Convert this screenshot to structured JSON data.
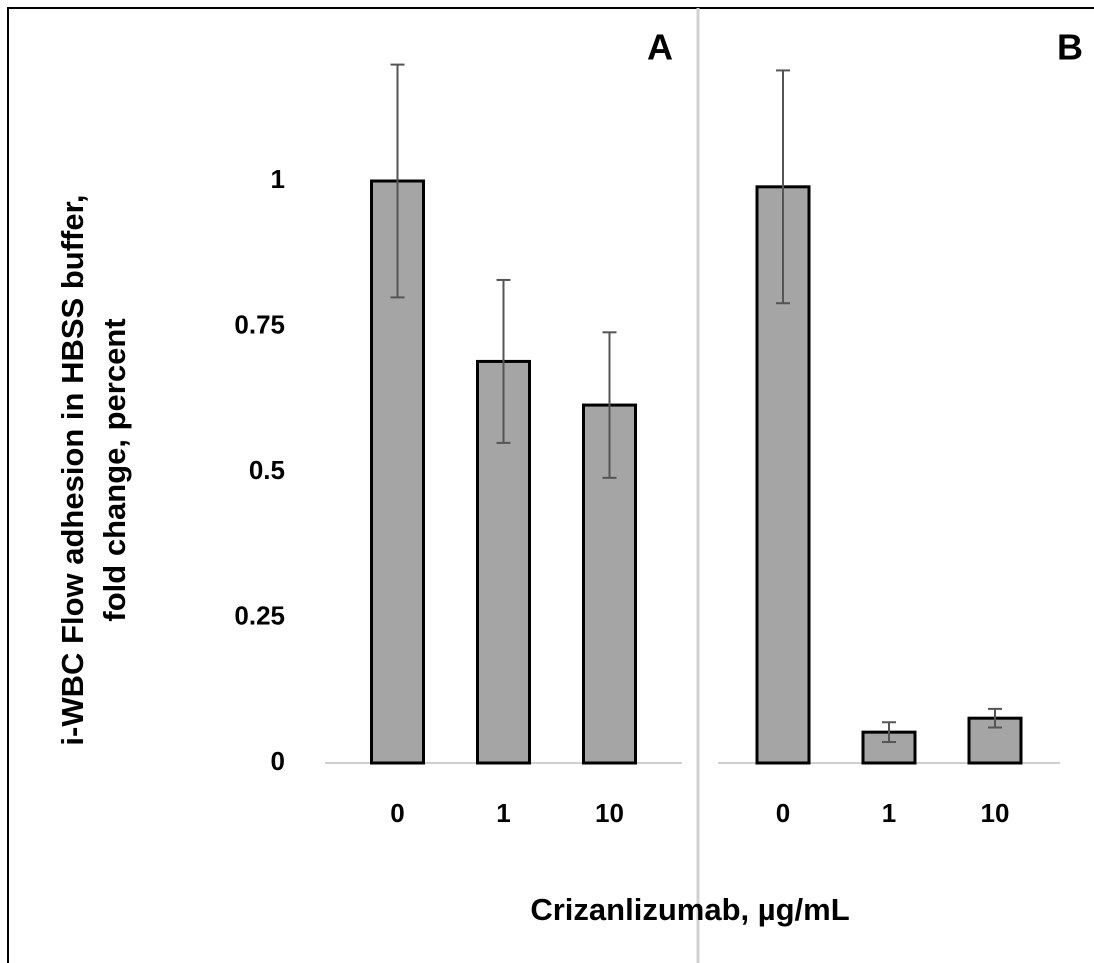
{
  "chart_data": [
    {
      "type": "bar",
      "title": "A",
      "ylabel": [
        "i-WBC Flow adhesion in HBSS buffer,",
        "fold change, percent"
      ],
      "xlabel": "Crizanlizumab, µg/mL",
      "categories": [
        "0",
        "1",
        "10"
      ],
      "values": [
        1.0,
        0.69,
        0.615
      ],
      "errors": [
        0.2,
        0.14,
        0.125
      ],
      "color": "#a5a5a5",
      "ylim": [
        0,
        1.25
      ],
      "yticks": [
        0,
        0.25,
        0.5,
        0.75,
        1
      ]
    },
    {
      "type": "bar",
      "title": "B",
      "categories": [
        "0",
        "1",
        "10"
      ],
      "values": [
        0.99,
        0.053,
        0.077
      ],
      "errors": [
        0.2,
        0.017,
        0.016
      ],
      "color": "#a5a5a5",
      "ylim": [
        0,
        1.25
      ]
    }
  ]
}
